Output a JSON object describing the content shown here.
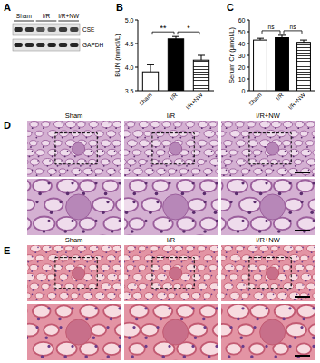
{
  "chart_data": [
    {
      "type": "bar",
      "y_label": "BUN (mmol/L)",
      "categories": [
        "Sham",
        "I/R",
        "I/R+NW"
      ],
      "values": [
        3.9,
        4.6,
        4.15
      ],
      "errors": [
        0.15,
        0.05,
        0.1
      ],
      "colors": [
        "#ffffff",
        "#000000",
        "#ffffff"
      ],
      "ylim": [
        3.5,
        5.0
      ],
      "yticks": [
        3.5,
        {
          "value": 4.0,
          "label": "4.0"
        },
        4.5,
        {
          "value": 5.0,
          "label": "5.0"
        }
      ],
      "annotations": [
        {
          "text": "**",
          "between": [
            0,
            1
          ]
        },
        {
          "text": "*",
          "between": [
            1,
            2
          ]
        }
      ]
    },
    {
      "type": "bar",
      "y_label": "Serum Cr (μmol/L)",
      "categories": [
        "Sham",
        "I/R",
        "I/R+NW"
      ],
      "values": [
        43,
        45,
        41
      ],
      "errors": [
        1.5,
        2,
        2
      ],
      "colors": [
        "#ffffff",
        "#000000",
        "#ffffff"
      ],
      "ylim": [
        0,
        60
      ],
      "yticks": [
        0,
        10,
        20,
        30,
        40,
        50,
        60
      ],
      "annotations": [
        {
          "text": "ns",
          "between": [
            0,
            1
          ]
        },
        {
          "text": "ns",
          "between": [
            1,
            2
          ]
        }
      ]
    }
  ],
  "figure": {
    "panel_labels": [
      "A",
      "B",
      "C",
      "D",
      "E"
    ],
    "blot": {
      "groups": [
        "Sham",
        "I/R",
        "I/R+NW"
      ],
      "rows": [
        "CSE",
        "GAPDH"
      ]
    },
    "histology": [
      {
        "columns": [
          "Sham",
          "I/R",
          "I/R+NW"
        ]
      },
      {
        "columns": [
          "Sham",
          "I/R",
          "I/R+NW"
        ]
      }
    ]
  }
}
